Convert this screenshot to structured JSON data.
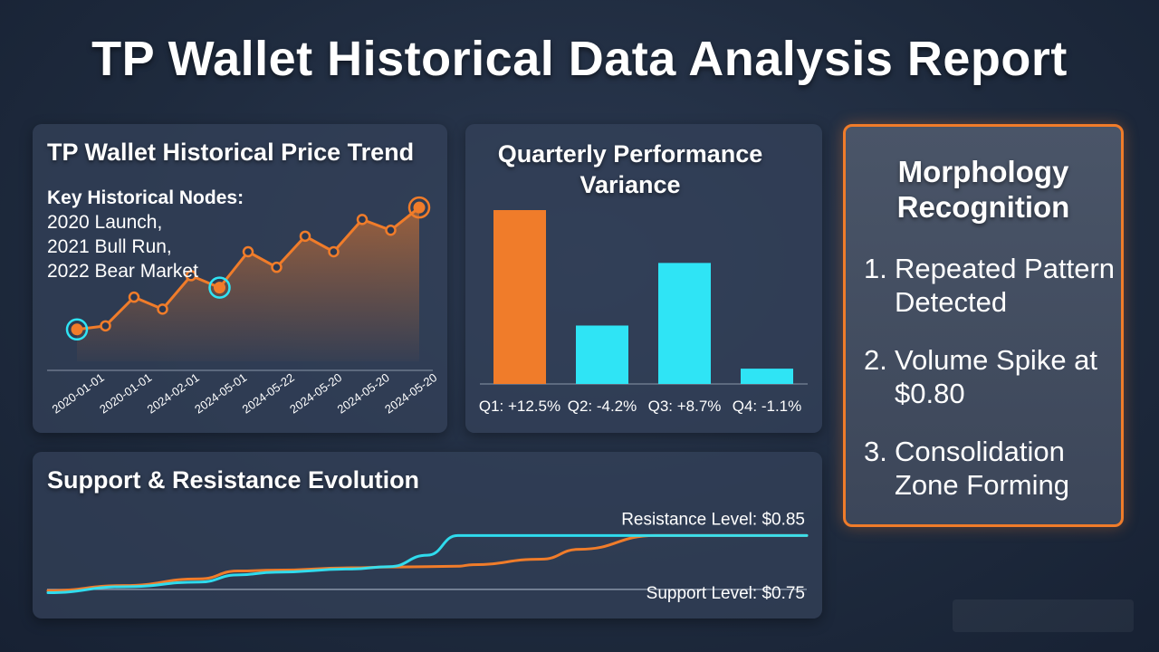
{
  "title": "TP Wallet Historical Data Analysis Report",
  "price_panel": {
    "title": "TP Wallet Historical Price Trend",
    "nodes_heading": "Key Historical Nodes:",
    "nodes": [
      "2020 Launch,",
      "2021 Bull Run,",
      "2022 Bear Market"
    ]
  },
  "quarter_panel": {
    "title_lines": [
      "Quarterly Performance",
      "Variance"
    ]
  },
  "sr_panel": {
    "title": "Support & Resistance Evolution"
  },
  "morph_panel": {
    "title_lines": [
      "Morphology",
      "Recognition"
    ],
    "items": [
      {
        "num": "1.",
        "lines": [
          "Repeated Pattern",
          "Detected"
        ]
      },
      {
        "num": "2.",
        "lines": [
          "Volume Spike at",
          "$0.80"
        ]
      },
      {
        "num": "3.",
        "lines": [
          "Consolidation",
          "Zone Forming"
        ]
      }
    ]
  },
  "colors": {
    "orange": "#f07c2a",
    "cyan": "#2fe4f5",
    "accent_border": "#f07c2a"
  },
  "chart_data": [
    {
      "type": "line",
      "title": "TP Wallet Historical Price Trend",
      "x_tick_labels": [
        "2020-01-01",
        "2020-01-01",
        "2024-02-01",
        "2024-05-01",
        "2024-05-22",
        "2024-05-20",
        "2024-05-20",
        "2024-05-20"
      ],
      "values": [
        0.1,
        0.13,
        0.37,
        0.27,
        0.55,
        0.45,
        0.75,
        0.62,
        0.88,
        0.75,
        1.02,
        0.93,
        1.12
      ],
      "highlighted_points": [
        0,
        5,
        12
      ],
      "ylim": [
        0,
        1.25
      ],
      "fill": "area-gradient"
    },
    {
      "type": "bar",
      "title": "Quarterly Performance Variance",
      "categories": [
        "Q1",
        "Q2",
        "Q3",
        "Q4"
      ],
      "values": [
        12.5,
        -4.2,
        8.7,
        -1.1
      ],
      "labels": [
        "Q1: +12.5%",
        "Q2: -4.2%",
        "Q3: +8.7%",
        "Q4: -1.1%"
      ],
      "bar_colors": [
        "#f07c2a",
        "#2fe4f5",
        "#2fe4f5",
        "#2fe4f5"
      ]
    },
    {
      "type": "line",
      "title": "Support & Resistance Evolution",
      "x": [
        0,
        10,
        20,
        25,
        30,
        40,
        45,
        50,
        54,
        56,
        65,
        70,
        80,
        100
      ],
      "series": [
        {
          "color": "#f07c2a",
          "values": [
            0.71,
            0.723,
            0.74,
            0.76,
            0.762,
            0.768,
            0.77,
            0.771,
            0.772,
            0.776,
            0.79,
            0.815,
            0.85,
            0.85
          ]
        },
        {
          "color": "#2fe4f5",
          "values": [
            0.705,
            0.72,
            0.732,
            0.75,
            0.757,
            0.765,
            0.771,
            0.8,
            0.85,
            0.85,
            0.85,
            0.85,
            0.85,
            0.85
          ]
        }
      ],
      "annotations": [
        {
          "text": "Resistance Level: $0.85",
          "value": 0.85
        },
        {
          "text": "Support Level: $0.75",
          "value": 0.75
        }
      ],
      "ylim": [
        0.69,
        0.86
      ]
    }
  ]
}
